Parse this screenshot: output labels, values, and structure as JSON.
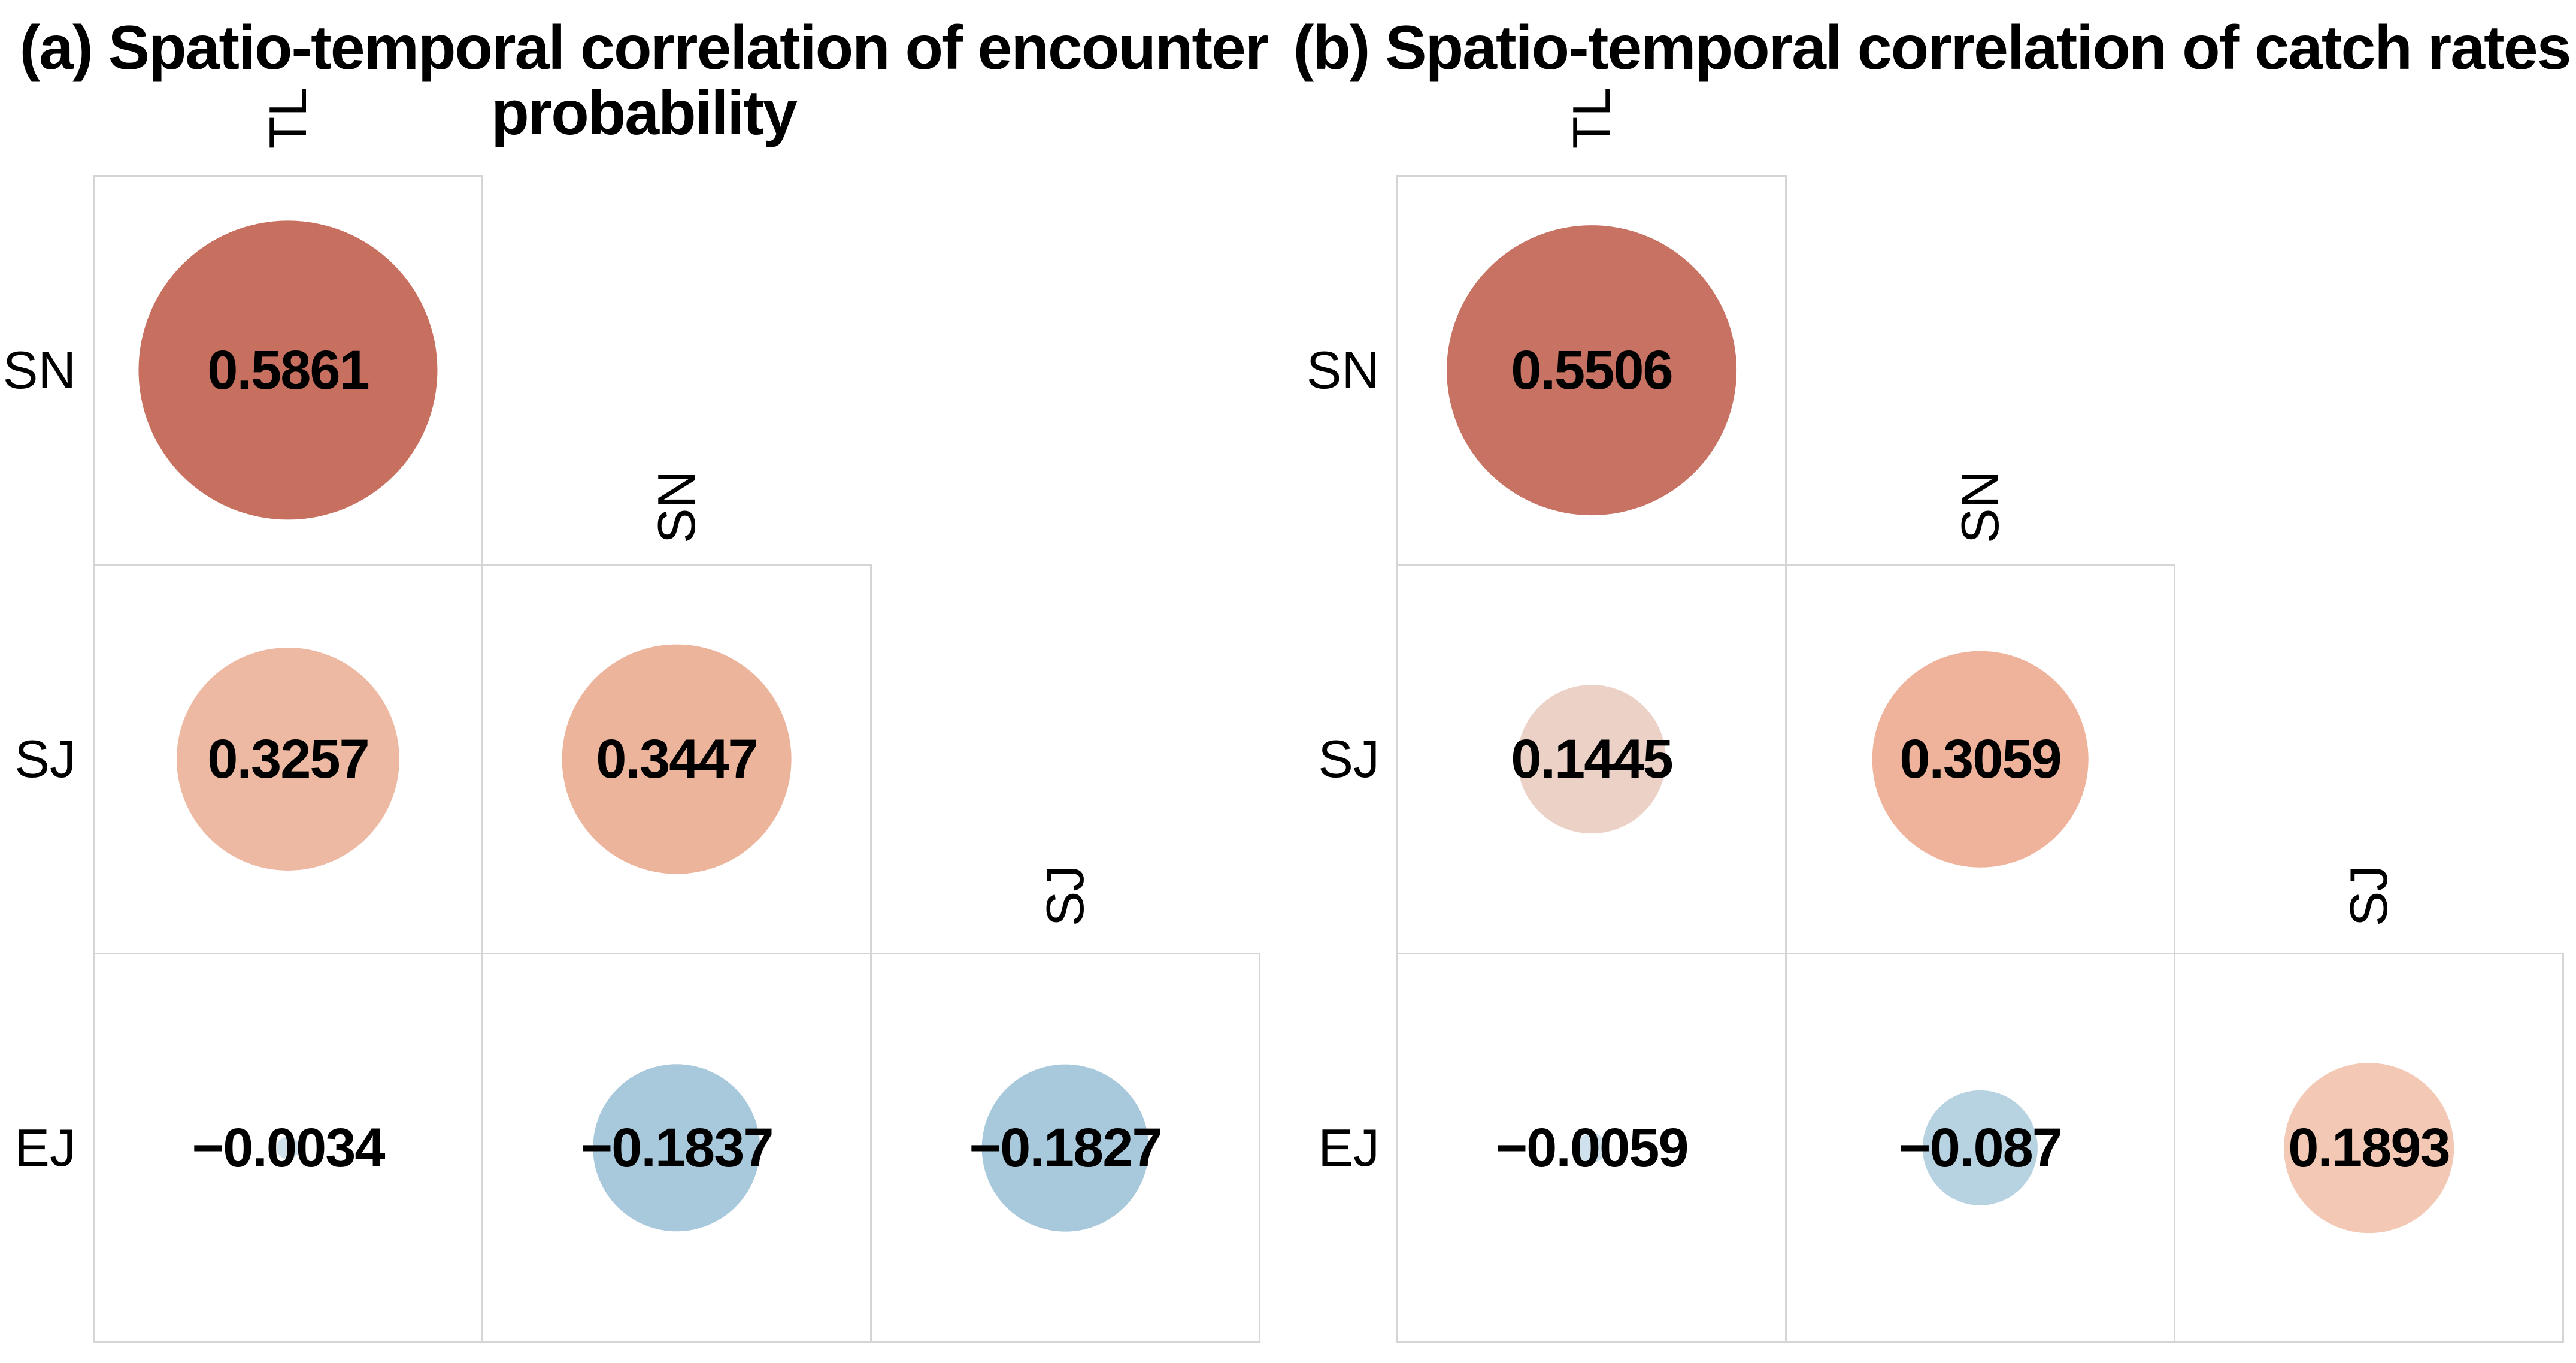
{
  "figure": {
    "style": {
      "grid_line_color": "#d5d5d5",
      "positive_color_strong": "#c7705f",
      "positive_color_light": "#eeb9a2",
      "negative_color_light": "#a8c9dc",
      "text_color": "#000000",
      "background": "#ffffff"
    },
    "panels": [
      {
        "id": "a",
        "title": "(a) Spatio-temporal correlation of encounter probability",
        "col_headers": [
          "TL",
          "SN",
          "SJ"
        ],
        "row_labels": [
          "SN",
          "SJ",
          "EJ"
        ],
        "cells": [
          {
            "row": 0,
            "col": 0,
            "label": "0.5861",
            "value": 0.5861,
            "color": "#c7705f"
          },
          {
            "row": 1,
            "col": 0,
            "label": "0.3257",
            "value": 0.3257,
            "color": "#eeb9a2"
          },
          {
            "row": 1,
            "col": 1,
            "label": "0.3447",
            "value": 0.3447,
            "color": "#edb49c"
          },
          {
            "row": 2,
            "col": 0,
            "label": "−0.0034",
            "value": -0.0034,
            "color": "#cfe1ec"
          },
          {
            "row": 2,
            "col": 1,
            "label": "−0.1837",
            "value": -0.1837,
            "color": "#a8c9dc"
          },
          {
            "row": 2,
            "col": 2,
            "label": "−0.1827",
            "value": -0.1827,
            "color": "#a8c9dc"
          }
        ]
      },
      {
        "id": "b",
        "title": "(b) Spatio-temporal correlation of catch rates",
        "col_headers": [
          "TL",
          "SN",
          "SJ"
        ],
        "row_labels": [
          "SN",
          "SJ",
          "EJ"
        ],
        "cells": [
          {
            "row": 0,
            "col": 0,
            "label": "0.5506",
            "value": 0.5506,
            "color": "#c87264"
          },
          {
            "row": 1,
            "col": 0,
            "label": "0.1445",
            "value": 0.1445,
            "color": "#ecd1c7"
          },
          {
            "row": 1,
            "col": 1,
            "label": "0.3059",
            "value": 0.3059,
            "color": "#efb29a"
          },
          {
            "row": 2,
            "col": 0,
            "label": "−0.0059",
            "value": -0.0059,
            "color": "#cfe1ec"
          },
          {
            "row": 2,
            "col": 1,
            "label": "−0.087",
            "value": -0.087,
            "color": "#b7d2e1"
          },
          {
            "row": 2,
            "col": 2,
            "label": "0.1893",
            "value": 0.1893,
            "color": "#f3c9b6"
          }
        ]
      }
    ]
  },
  "chart_data": [
    {
      "type": "heatmap",
      "subtype": "correlation-circle-matrix",
      "title": "(a) Spatio-temporal correlation of encounter probability",
      "rows": [
        "SN",
        "SJ",
        "EJ"
      ],
      "cols": [
        "TL",
        "SN",
        "SJ"
      ],
      "values": [
        [
          0.5861,
          null,
          null
        ],
        [
          0.3257,
          0.3447,
          null
        ],
        [
          -0.0034,
          -0.1837,
          -0.1827
        ]
      ],
      "value_range": [
        -1,
        1
      ],
      "encoding": "lower triangle only; circle area proportional to |r|; red = positive, blue = negative; value printed in each cell",
      "grid": true,
      "legend": false
    },
    {
      "type": "heatmap",
      "subtype": "correlation-circle-matrix",
      "title": "(b) Spatio-temporal correlation of catch rates",
      "rows": [
        "SN",
        "SJ",
        "EJ"
      ],
      "cols": [
        "TL",
        "SN",
        "SJ"
      ],
      "values": [
        [
          0.5506,
          null,
          null
        ],
        [
          0.1445,
          0.3059,
          null
        ],
        [
          -0.0059,
          -0.087,
          0.1893
        ]
      ],
      "value_range": [
        -1,
        1
      ],
      "encoding": "lower triangle only; circle area proportional to |r|; red = positive, blue = negative; value printed in each cell",
      "grid": true,
      "legend": false
    }
  ]
}
